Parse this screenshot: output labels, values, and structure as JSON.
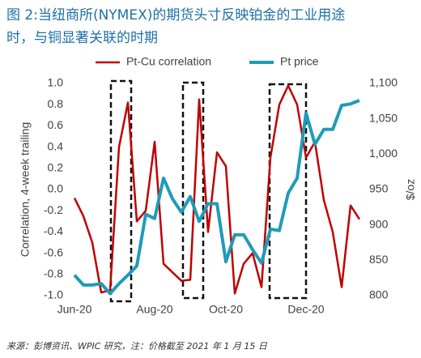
{
  "chart_data": {
    "type": "line",
    "title": [
      "图 2:当纽商所(NYMEX)的期货头寸反映铂金的工业用途",
      "时，与铜显著关联的时期"
    ],
    "source": "来源：彭博资讯、WPIC 研究，注：价格截至 2021 年 1 月 15 日",
    "ylabel": "Correlation, 4-week trailing",
    "y2label": "$/oz",
    "categories": [
      "Jun-20",
      null,
      null,
      null,
      null,
      null,
      null,
      null,
      null,
      "Aug-20",
      null,
      null,
      null,
      null,
      null,
      null,
      null,
      "Oct-20",
      null,
      null,
      null,
      null,
      null,
      null,
      null,
      null,
      "Dec-20",
      null,
      null,
      null,
      null,
      null,
      null
    ],
    "series": [
      {
        "name": "Pt-Cu correlation",
        "color": "#c00000",
        "values": [
          -0.08,
          -0.25,
          -0.5,
          -0.97,
          -0.95,
          0.4,
          0.82,
          -0.3,
          -0.2,
          0.45,
          -0.7,
          -0.78,
          -0.86,
          -0.85,
          0.85,
          -0.4,
          0.35,
          0.22,
          -0.98,
          -0.7,
          -0.6,
          -0.92,
          0.3,
          0.8,
          0.98,
          0.8,
          0.3,
          0.45,
          -0.1,
          -0.4,
          -0.92,
          -0.15,
          -0.28
        ]
      },
      {
        "name": "Pt price",
        "color": "#1f9bb8",
        "axis": "y2",
        "values": [
          829,
          815,
          815,
          817,
          803,
          817,
          829,
          842,
          915,
          909,
          966,
          937,
          918,
          940,
          905,
          930,
          930,
          848,
          886,
          886,
          865,
          846,
          894,
          892,
          945,
          966,
          1058,
          1014,
          1035,
          1035,
          1069,
          1071,
          1076
        ]
      }
    ],
    "ylim": [
      -1,
      1
    ],
    "yticks": [
      {
        "value": -1,
        "label": "-1.0"
      },
      -0.8,
      -0.6,
      -0.4,
      -0.2,
      {
        "value": 0,
        "label": "0.0"
      },
      0.2,
      0.4,
      0.6,
      0.8,
      {
        "value": 1,
        "label": "1.0"
      }
    ],
    "y2lim": [
      800,
      1100
    ],
    "y2ticks": [
      800,
      850,
      900,
      950,
      {
        "value": 1000,
        "label": "1,000"
      },
      {
        "value": 1050,
        "label": "1,050"
      },
      {
        "value": 1100,
        "label": "1,100"
      }
    ],
    "legend": "top"
  }
}
